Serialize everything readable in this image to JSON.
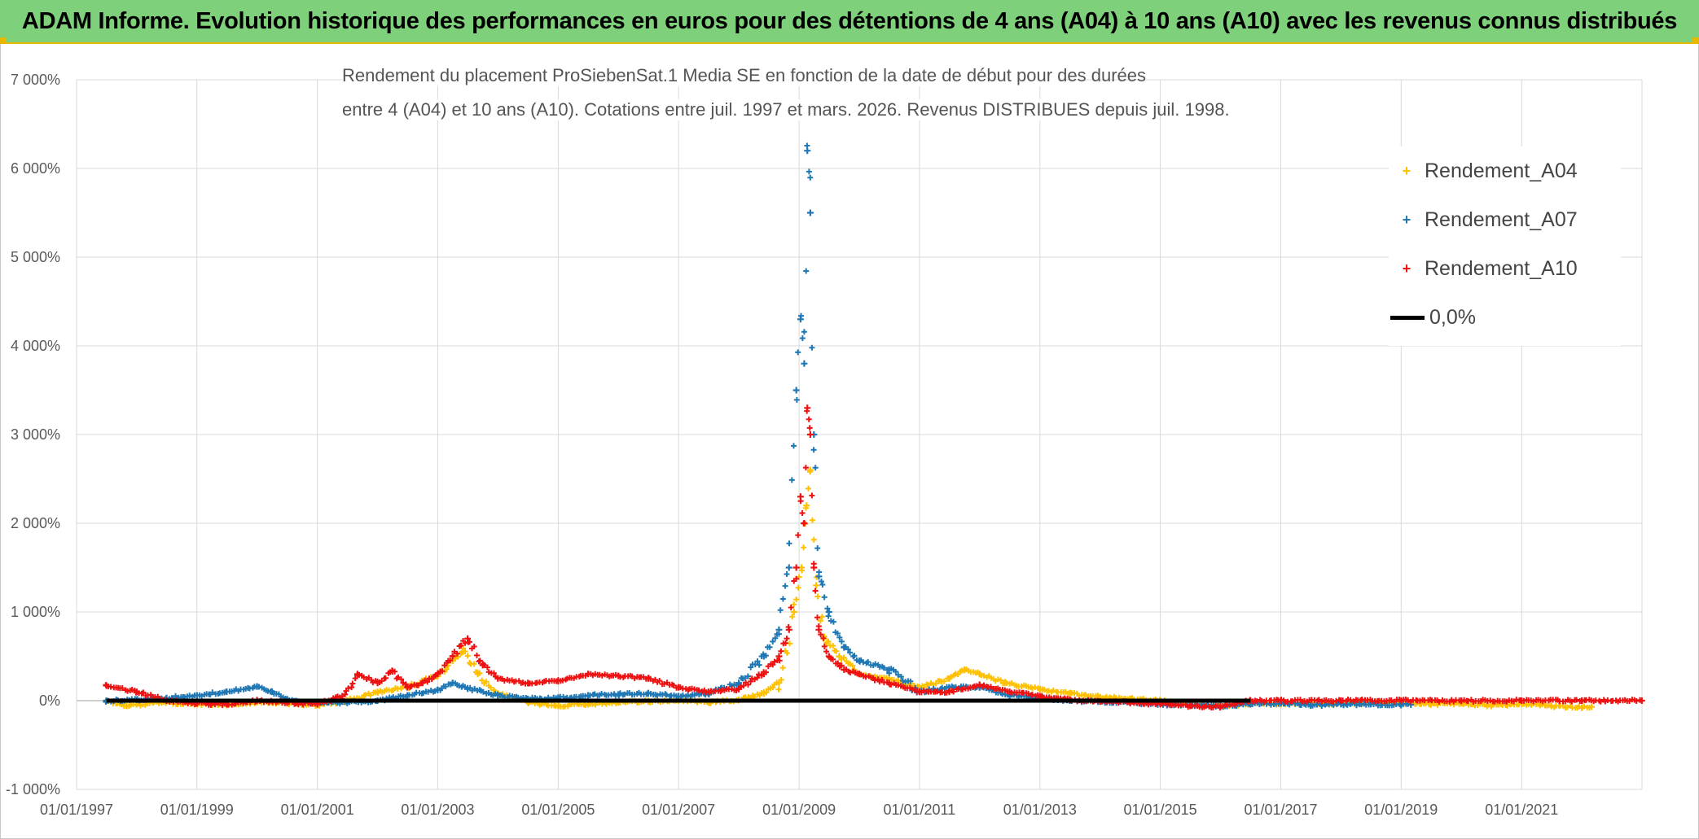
{
  "banner": {
    "title": "ADAM Informe. Evolution historique des performances en euros pour des détentions de 4 ans (A04) à 10 ans (A10) avec les revenus connus distribués"
  },
  "chart_data": {
    "type": "scatter",
    "title_line1": "Rendement du placement ProSiebenSat.1 Media SE en fonction de la date de début pour des durées",
    "title_line2": "entre 4 (A04) et 10 ans (A10). Cotations entre juil. 1997 et mars. 2026. Revenus DISTRIBUES depuis juil. 1998.",
    "xlabel": "",
    "ylabel": "",
    "x_range": [
      "1997-01-01",
      "2023-01-01"
    ],
    "ylim": [
      -1000,
      7000
    ],
    "y_ticks": [
      -1000,
      0,
      1000,
      2000,
      3000,
      4000,
      5000,
      6000,
      7000
    ],
    "y_tick_labels": [
      "-1 000%",
      "0%",
      "1 000%",
      "2 000%",
      "3 000%",
      "4 000%",
      "5 000%",
      "6 000%",
      "7 000%"
    ],
    "x_ticks": [
      "1997-01-01",
      "1999-01-01",
      "2001-01-01",
      "2003-01-01",
      "2005-01-01",
      "2007-01-01",
      "2009-01-01",
      "2011-01-01",
      "2013-01-01",
      "2015-01-01",
      "2017-01-01",
      "2019-01-01",
      "2021-01-01"
    ],
    "x_tick_labels": [
      "01/01/1997",
      "01/01/1999",
      "01/01/2001",
      "01/01/2003",
      "01/01/2005",
      "01/01/2007",
      "01/01/2009",
      "01/01/2011",
      "01/01/2013",
      "01/01/2015",
      "01/01/2017",
      "01/01/2019",
      "01/01/2021"
    ],
    "grid": true,
    "legend_position": "top-right",
    "zero_line": {
      "name": "0,0%",
      "value": 0,
      "color": "#000000"
    },
    "series": [
      {
        "name": "Rendement_A04",
        "color": "#ffc000",
        "points": [
          [
            "1997-07-01",
            0
          ],
          [
            "1997-11-01",
            -60
          ],
          [
            "1998-06-01",
            -20
          ],
          [
            "1999-01-01",
            -40
          ],
          [
            "1999-07-01",
            -50
          ],
          [
            "2000-01-01",
            -20
          ],
          [
            "2000-07-01",
            -30
          ],
          [
            "2001-01-01",
            -50
          ],
          [
            "2001-07-01",
            0
          ],
          [
            "2002-01-01",
            100
          ],
          [
            "2002-07-01",
            150
          ],
          [
            "2003-01-01",
            280
          ],
          [
            "2003-04-01",
            450
          ],
          [
            "2003-06-01",
            550
          ],
          [
            "2003-09-01",
            300
          ],
          [
            "2004-01-01",
            80
          ],
          [
            "2004-07-01",
            -20
          ],
          [
            "2005-01-01",
            -60
          ],
          [
            "2005-07-01",
            -40
          ],
          [
            "2006-01-01",
            -20
          ],
          [
            "2006-07-01",
            -10
          ],
          [
            "2007-01-01",
            0
          ],
          [
            "2007-07-01",
            -20
          ],
          [
            "2008-01-01",
            10
          ],
          [
            "2008-06-01",
            80
          ],
          [
            "2008-09-01",
            200
          ],
          [
            "2008-12-01",
            1000
          ],
          [
            "2009-01-15",
            1500
          ],
          [
            "2009-02-15",
            2200
          ],
          [
            "2009-03-10",
            2600
          ],
          [
            "2009-04-15",
            1300
          ],
          [
            "2009-06-01",
            700
          ],
          [
            "2009-09-01",
            500
          ],
          [
            "2010-01-01",
            300
          ],
          [
            "2010-07-01",
            250
          ],
          [
            "2011-01-01",
            150
          ],
          [
            "2011-07-01",
            250
          ],
          [
            "2011-10-01",
            350
          ],
          [
            "2012-01-01",
            300
          ],
          [
            "2012-06-01",
            200
          ],
          [
            "2013-01-01",
            130
          ],
          [
            "2013-07-01",
            80
          ],
          [
            "2014-01-01",
            40
          ],
          [
            "2014-07-01",
            20
          ],
          [
            "2015-01-01",
            0
          ],
          [
            "2015-07-01",
            -40
          ],
          [
            "2016-01-01",
            -60
          ],
          [
            "2016-07-01",
            -30
          ],
          [
            "2017-01-01",
            -40
          ],
          [
            "2017-07-01",
            -30
          ],
          [
            "2018-01-01",
            -30
          ],
          [
            "2018-07-01",
            -20
          ],
          [
            "2019-01-01",
            -30
          ],
          [
            "2019-07-01",
            -40
          ],
          [
            "2020-01-01",
            -30
          ],
          [
            "2020-07-01",
            -60
          ],
          [
            "2021-01-01",
            -40
          ],
          [
            "2021-07-01",
            -60
          ],
          [
            "2022-01-01",
            -80
          ],
          [
            "2022-03-01",
            -70
          ]
        ]
      },
      {
        "name": "Rendement_A07",
        "color": "#1f77b4",
        "points": [
          [
            "1997-07-01",
            0
          ],
          [
            "1998-01-01",
            10
          ],
          [
            "1998-07-01",
            30
          ],
          [
            "1999-01-01",
            60
          ],
          [
            "1999-07-01",
            100
          ],
          [
            "2000-01-01",
            160
          ],
          [
            "2000-04-01",
            100
          ],
          [
            "2000-07-01",
            10
          ],
          [
            "2001-01-01",
            -30
          ],
          [
            "2001-07-01",
            -20
          ],
          [
            "2002-01-01",
            0
          ],
          [
            "2002-07-01",
            60
          ],
          [
            "2003-01-01",
            120
          ],
          [
            "2003-04-01",
            200
          ],
          [
            "2003-07-01",
            140
          ],
          [
            "2004-01-01",
            60
          ],
          [
            "2004-07-01",
            20
          ],
          [
            "2005-01-01",
            30
          ],
          [
            "2005-07-01",
            60
          ],
          [
            "2006-01-01",
            70
          ],
          [
            "2006-07-01",
            80
          ],
          [
            "2007-01-01",
            50
          ],
          [
            "2007-07-01",
            80
          ],
          [
            "2008-01-01",
            200
          ],
          [
            "2008-06-01",
            500
          ],
          [
            "2008-09-01",
            800
          ],
          [
            "2008-11-01",
            1500
          ],
          [
            "2008-12-15",
            3500
          ],
          [
            "2009-01-10",
            4300
          ],
          [
            "2009-02-01",
            3800
          ],
          [
            "2009-02-20",
            6200
          ],
          [
            "2009-03-10",
            5500
          ],
          [
            "2009-04-01",
            3000
          ],
          [
            "2009-05-01",
            1400
          ],
          [
            "2009-07-01",
            1000
          ],
          [
            "2009-10-01",
            600
          ],
          [
            "2010-01-01",
            450
          ],
          [
            "2010-07-01",
            350
          ],
          [
            "2011-01-01",
            100
          ],
          [
            "2011-07-01",
            150
          ],
          [
            "2012-01-01",
            150
          ],
          [
            "2012-07-01",
            60
          ],
          [
            "2013-01-01",
            30
          ],
          [
            "2013-07-01",
            0
          ],
          [
            "2014-01-01",
            -10
          ],
          [
            "2014-07-01",
            -20
          ],
          [
            "2015-01-01",
            -40
          ],
          [
            "2015-07-01",
            -50
          ],
          [
            "2016-01-01",
            -60
          ],
          [
            "2016-07-01",
            -40
          ],
          [
            "2017-01-01",
            -30
          ],
          [
            "2017-07-01",
            -50
          ],
          [
            "2018-01-01",
            -40
          ],
          [
            "2018-07-01",
            -40
          ],
          [
            "2019-01-01",
            -50
          ],
          [
            "2019-03-01",
            -45
          ]
        ]
      },
      {
        "name": "Rendement_A10",
        "color": "#ee1111",
        "points": [
          [
            "1997-07-01",
            170
          ],
          [
            "1998-01-01",
            100
          ],
          [
            "1998-07-01",
            0
          ],
          [
            "1999-01-01",
            -30
          ],
          [
            "1999-07-01",
            -40
          ],
          [
            "2000-01-01",
            0
          ],
          [
            "2000-07-01",
            -20
          ],
          [
            "2001-01-01",
            -40
          ],
          [
            "2001-06-01",
            50
          ],
          [
            "2001-09-01",
            300
          ],
          [
            "2002-01-01",
            200
          ],
          [
            "2002-04-01",
            330
          ],
          [
            "2002-07-01",
            150
          ],
          [
            "2002-10-01",
            200
          ],
          [
            "2003-01-01",
            300
          ],
          [
            "2003-04-01",
            500
          ],
          [
            "2003-07-01",
            700
          ],
          [
            "2003-10-01",
            400
          ],
          [
            "2004-01-01",
            250
          ],
          [
            "2004-07-01",
            200
          ],
          [
            "2005-01-01",
            220
          ],
          [
            "2005-07-01",
            300
          ],
          [
            "2006-01-01",
            280
          ],
          [
            "2006-07-01",
            250
          ],
          [
            "2007-01-01",
            150
          ],
          [
            "2007-07-01",
            100
          ],
          [
            "2008-01-01",
            130
          ],
          [
            "2008-06-01",
            300
          ],
          [
            "2008-09-01",
            500
          ],
          [
            "2008-11-01",
            800
          ],
          [
            "2008-12-15",
            1500
          ],
          [
            "2009-01-10",
            2300
          ],
          [
            "2009-02-01",
            2000
          ],
          [
            "2009-02-20",
            3300
          ],
          [
            "2009-03-10",
            3000
          ],
          [
            "2009-04-01",
            1500
          ],
          [
            "2009-05-01",
            800
          ],
          [
            "2009-07-01",
            500
          ],
          [
            "2009-10-01",
            350
          ],
          [
            "2010-01-01",
            300
          ],
          [
            "2010-07-01",
            200
          ],
          [
            "2011-01-01",
            100
          ],
          [
            "2011-07-01",
            100
          ],
          [
            "2012-01-01",
            180
          ],
          [
            "2012-07-01",
            100
          ],
          [
            "2013-01-01",
            50
          ],
          [
            "2013-07-01",
            10
          ],
          [
            "2014-01-01",
            -10
          ],
          [
            "2014-07-01",
            -20
          ],
          [
            "2015-01-01",
            -40
          ],
          [
            "2015-07-01",
            -60
          ],
          [
            "2016-01-01",
            -70
          ],
          [
            "2016-07-01",
            0
          ],
          [
            "2017-01-01",
            0
          ],
          [
            "2018-01-01",
            0
          ],
          [
            "2019-01-01",
            0
          ],
          [
            "2020-01-01",
            0
          ],
          [
            "2021-01-01",
            0
          ],
          [
            "2022-01-01",
            0
          ],
          [
            "2022-12-31",
            0
          ]
        ]
      }
    ]
  }
}
